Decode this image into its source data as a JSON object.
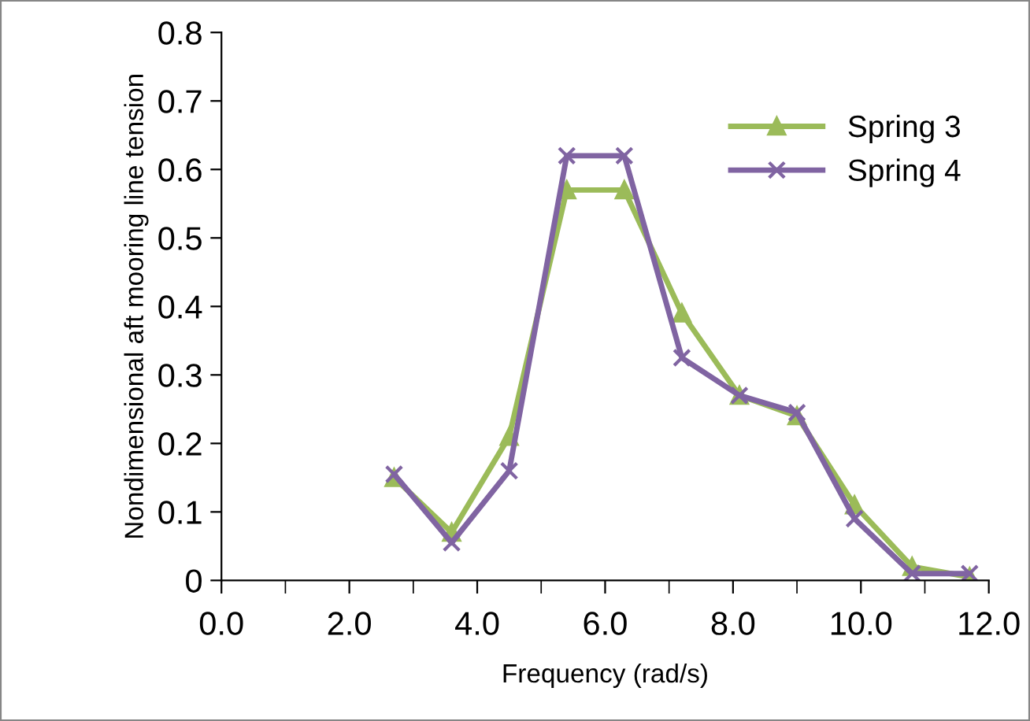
{
  "chart_data": {
    "type": "line",
    "xlabel": "Frequency (rad/s)",
    "ylabel": "Nondimensional aft mooring line tension",
    "xlim": [
      0,
      12
    ],
    "xticks": [
      {
        "value": 0,
        "label": "0.0"
      },
      {
        "value": 2,
        "label": "2.0"
      },
      {
        "value": 4,
        "label": "4.0"
      },
      {
        "value": 6,
        "label": "6.0"
      },
      {
        "value": 8,
        "label": "8.0"
      },
      {
        "value": 10,
        "label": "10.0"
      },
      {
        "value": 12,
        "label": "12.0"
      }
    ],
    "ylim": [
      0,
      0.8
    ],
    "yticks": [
      0,
      0.1,
      0.2,
      0.3,
      0.4,
      0.5,
      0.6,
      0.7,
      0.8
    ],
    "x": [
      2.7,
      3.6,
      4.5,
      5.4,
      6.3,
      7.2,
      8.1,
      9.0,
      9.9,
      10.8,
      11.7
    ],
    "series": [
      {
        "name": "Spring 3",
        "color": "#9bbb59",
        "marker": "triangle",
        "values": [
          0.15,
          0.07,
          0.21,
          0.57,
          0.57,
          0.39,
          0.27,
          0.24,
          0.11,
          0.02,
          0.005
        ]
      },
      {
        "name": "Spring 4",
        "color": "#8064a2",
        "marker": "cross",
        "values": [
          0.155,
          0.055,
          0.16,
          0.62,
          0.62,
          0.325,
          0.27,
          0.245,
          0.09,
          0.01,
          0.01
        ]
      }
    ],
    "legend": "top right",
    "grid": false,
    "line_style": "solid"
  }
}
